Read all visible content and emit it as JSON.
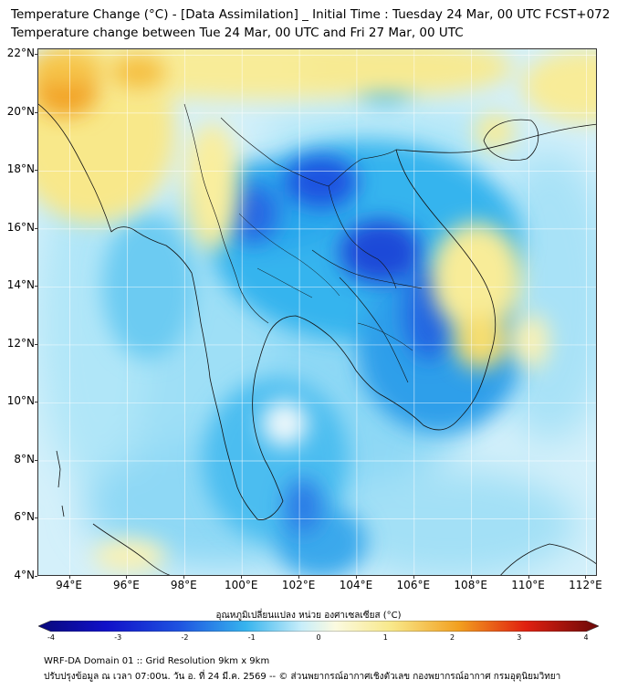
{
  "header": {
    "title_line1": "Temperature Change (°C) - [Data Assimilation] _ Initial Time : Tuesday 24 Mar, 00 UTC FCST+072",
    "title_line2": "Temperature change between Tue 24 Mar, 00 UTC and Fri 27 Mar, 00 UTC"
  },
  "map": {
    "lat_labels": [
      "22°N",
      "20°N",
      "18°N",
      "16°N",
      "14°N",
      "12°N",
      "10°N",
      "8°N",
      "6°N",
      "4°N"
    ],
    "lon_labels": [
      "94°E",
      "96°E",
      "98°E",
      "100°E",
      "102°E",
      "104°E",
      "106°E",
      "108°E",
      "110°E",
      "112°E"
    ],
    "lat_range": [
      4,
      22.2
    ],
    "lon_range": [
      92.9,
      112.4
    ],
    "colors": {
      "strong_cool": "#1e52e0",
      "cool": "#36b4ee",
      "mild_cool": "#9fe0f7",
      "neutral": "#e8f6fb",
      "warm": "#f8e88a",
      "hot": "#f2a020"
    }
  },
  "colorbar": {
    "title": "อุณหภูมิเปลี่ยนแปลง หน่วย องศาเซลเซียส (°C)",
    "ticks": [
      "-4",
      "-3",
      "-2",
      "-1",
      "0",
      "1",
      "2",
      "3",
      "4"
    ],
    "min": -4,
    "max": 4
  },
  "footer": {
    "line1": "WRF-DA Domain 01 :: Grid Resolution 9km x 9km",
    "line2": "ปรับปรุงข้อมูล ณ เวลา 07:00น. วัน อ. ที่ 24 มี.ค. 2569 -- © ส่วนพยากรณ์อากาศเชิงตัวเลข กองพยากรณ์อากาศ กรมอุตุนิยมวิทยา"
  }
}
